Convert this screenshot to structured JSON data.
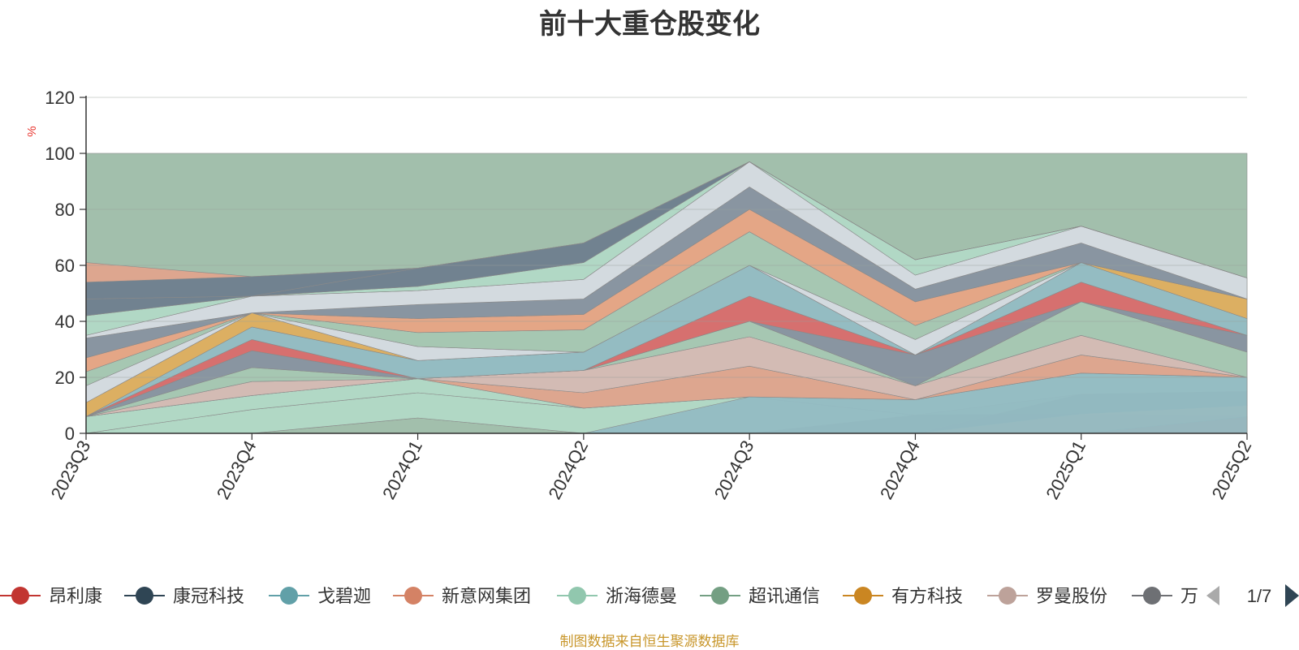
{
  "chart_data": {
    "type": "area",
    "title": "前十大重仓股变化",
    "ylabel": "%",
    "ylim": [
      0,
      120
    ],
    "yticks": [
      0,
      20,
      40,
      60,
      80,
      100,
      120
    ],
    "x": [
      "2023Q3",
      "2023Q4",
      "2024Q1",
      "2024Q2",
      "2024Q3",
      "2024Q4",
      "2025Q1",
      "2025Q2"
    ],
    "grid": true,
    "legend_position": "bottom",
    "bands": [
      {
        "lower": [
          0,
          0,
          0,
          0,
          0,
          0,
          0,
          0
        ],
        "upper": [
          100,
          100,
          100,
          100,
          100,
          100,
          100,
          100
        ],
        "color": "#9dbca8"
      },
      {
        "lower": [
          0,
          0,
          5.5,
          0,
          0,
          0,
          0,
          0
        ],
        "upper": [
          0,
          0,
          5.5,
          0,
          0,
          0,
          0,
          0
        ],
        "color": "#94bcc3"
      },
      {
        "lower": [
          0,
          0,
          5.5,
          0,
          0,
          0,
          0,
          0
        ],
        "upper": [
          0,
          8.5,
          14.5,
          9,
          13,
          6.5,
          7,
          6
        ],
        "color": "#b2d9c6"
      },
      {
        "lower": [
          0,
          0,
          0,
          0,
          0,
          0,
          0,
          0
        ],
        "upper": [
          0,
          0,
          0,
          0,
          0,
          6.5,
          7,
          6
        ],
        "color": "#6f7e8e"
      },
      {
        "lower": [
          0,
          0,
          0,
          0,
          0,
          0,
          0,
          0
        ],
        "upper": [
          0,
          0,
          0,
          0,
          0,
          0,
          0,
          6
        ],
        "color": "#d96b6b"
      },
      {
        "lower": [
          0,
          0,
          0,
          0,
          0,
          0,
          0,
          6
        ],
        "upper": [
          0,
          0,
          0,
          0,
          0,
          0,
          7,
          10
        ],
        "color": "#e0a48d"
      },
      {
        "lower": [
          0,
          0,
          0,
          0,
          0,
          0,
          7,
          10
        ],
        "upper": [
          0,
          0,
          0,
          0,
          0,
          0,
          7,
          10
        ],
        "color": "#dfae5e"
      },
      {
        "lower": [
          0,
          0,
          0,
          0,
          0,
          0,
          7,
          10
        ],
        "upper": [
          0,
          0,
          0,
          0,
          0,
          0,
          14,
          15
        ],
        "color": "#6f7e8e"
      },
      {
        "lower": [
          0,
          0,
          0,
          0,
          0,
          0,
          14,
          15
        ],
        "upper": [
          0,
          0,
          0,
          0,
          0,
          0,
          14,
          15
        ],
        "color": "#9a9ca2"
      },
      {
        "lower": [
          0,
          8.5,
          14.5,
          9,
          13,
          6.5,
          14,
          15
        ],
        "upper": [
          6,
          13.5,
          19.5,
          9,
          13,
          12,
          21.5,
          20
        ],
        "color": "#b2d9c6"
      },
      {
        "lower": [
          0,
          0,
          0,
          0,
          0,
          0,
          0,
          0
        ],
        "upper": [
          0,
          0,
          0,
          0,
          13,
          12,
          21.5,
          20
        ],
        "color": "#94bcc3"
      },
      {
        "lower": [
          6,
          13.5,
          19.5,
          9,
          13,
          12,
          21.5,
          20
        ],
        "upper": [
          6,
          13.5,
          19.5,
          14.5,
          24,
          12,
          28,
          20
        ],
        "color": "#e0a48d"
      },
      {
        "lower": [
          6,
          13.5,
          19.5,
          14.5,
          24,
          12,
          28,
          20
        ],
        "upper": [
          6,
          18.5,
          19.5,
          22.5,
          34.5,
          17,
          35,
          20
        ],
        "color": "#d6bab4"
      },
      {
        "lower": [
          6,
          18.5,
          19.5,
          22.5,
          34.5,
          17,
          35,
          20
        ],
        "upper": [
          6,
          23.5,
          19.5,
          22.5,
          40,
          17,
          47,
          29
        ],
        "color": "#a6c7b2"
      },
      {
        "lower": [
          6,
          23.5,
          19.5,
          22.5,
          40,
          17,
          47,
          29
        ],
        "upper": [
          6,
          29.5,
          19.5,
          22.5,
          40,
          28,
          47,
          35
        ],
        "color": "#8892a0"
      },
      {
        "lower": [
          6,
          29.5,
          19.5,
          22.5,
          40,
          28,
          47,
          35
        ],
        "upper": [
          6,
          33.5,
          19.5,
          22.5,
          49,
          28,
          54,
          35
        ],
        "color": "#d96b6b"
      },
      {
        "lower": [
          6,
          33.5,
          19.5,
          22.5,
          49,
          28,
          54,
          35
        ],
        "upper": [
          6,
          38,
          26,
          29,
          60,
          28,
          61,
          41
        ],
        "color": "#94bcc3"
      },
      {
        "lower": [
          6,
          38,
          26,
          29,
          60,
          28,
          61,
          41
        ],
        "upper": [
          11,
          43,
          26,
          29,
          60,
          28,
          61,
          48
        ],
        "color": "#dfae5e"
      },
      {
        "lower": [
          11,
          43,
          26,
          29,
          60,
          28,
          61,
          48
        ],
        "upper": [
          17,
          43,
          31,
          29,
          60,
          33.5,
          61,
          48
        ],
        "color": "#d6dbe2"
      },
      {
        "lower": [
          17,
          43,
          31,
          29,
          60,
          33.5,
          61,
          48
        ],
        "upper": [
          22,
          43,
          36,
          37,
          72,
          38.5,
          61,
          48
        ],
        "color": "#a6c7b2"
      },
      {
        "lower": [
          22,
          43,
          36,
          37,
          72,
          38.5,
          61,
          48
        ],
        "upper": [
          27,
          43,
          41,
          42.5,
          80,
          47,
          61,
          48
        ],
        "color": "#e8a484"
      },
      {
        "lower": [
          27,
          43,
          41,
          42.5,
          80,
          47,
          61,
          48
        ],
        "upper": [
          34,
          43,
          46,
          48,
          88,
          51.5,
          68,
          48
        ],
        "color": "#8892a0"
      },
      {
        "lower": [
          34,
          43,
          46,
          48,
          88,
          51.5,
          68,
          48
        ],
        "upper": [
          35,
          49,
          51,
          55,
          97,
          56.5,
          74,
          55.5
        ],
        "color": "#d6dbe2"
      },
      {
        "lower": [
          35,
          49,
          51,
          55,
          97,
          56.5,
          74,
          55.5
        ],
        "upper": [
          42,
          49,
          52.5,
          61,
          97,
          62,
          74,
          55.5
        ],
        "color": "#b2d9c6"
      },
      {
        "lower": [
          42,
          49,
          52.5,
          61,
          97,
          62,
          74,
          55.5
        ],
        "upper": [
          48,
          49,
          59,
          68,
          97,
          62,
          74,
          55.5
        ],
        "color": "#6f7e8e"
      },
      {
        "lower": [
          48,
          49,
          59,
          68,
          97,
          62,
          74,
          55.5
        ],
        "upper": [
          54,
          56,
          59,
          68,
          97,
          62,
          74,
          55.5
        ],
        "color": "#6f7e8e"
      },
      {
        "lower": [
          54,
          56,
          59,
          68,
          97,
          62,
          74,
          55.5
        ],
        "upper": [
          61,
          56,
          59,
          68,
          97,
          62,
          74,
          55.5
        ],
        "color": "#e0a48d"
      }
    ],
    "legend": [
      {
        "name": "昂利康",
        "color": "#c23531"
      },
      {
        "name": "康冠科技",
        "color": "#2f4554"
      },
      {
        "name": "戈碧迦",
        "color": "#61a0a8"
      },
      {
        "name": "新意网集团",
        "color": "#d48265"
      },
      {
        "name": "浙海德曼",
        "color": "#91c7ae"
      },
      {
        "name": "超讯通信",
        "color": "#749f83"
      },
      {
        "name": "有方科技",
        "color": "#ca8622"
      },
      {
        "name": "罗曼股份",
        "color": "#bda29a"
      },
      {
        "name": "万",
        "color": "#6e7074"
      }
    ]
  },
  "legend_pager": {
    "text": "1/7"
  },
  "source_note": "制图数据来自恒生聚源数据库"
}
